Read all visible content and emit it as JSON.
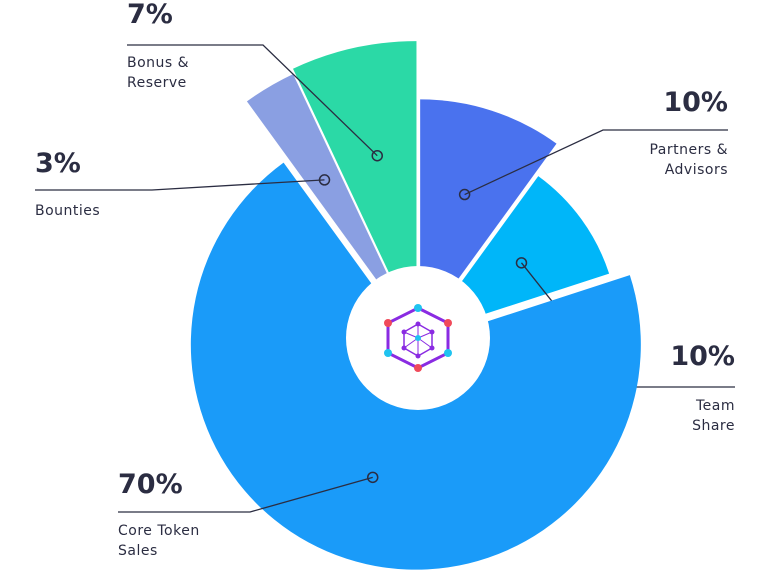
{
  "chart_data": {
    "type": "pie",
    "categories": [
      "Partners & Advisors",
      "Team Share",
      "Core Token Sales",
      "Bounties",
      "Bonus & Reserve"
    ],
    "values": [
      10,
      10,
      70,
      3,
      7
    ],
    "value_labels": [
      "10%",
      "10%",
      "70%",
      "3%",
      "7%"
    ],
    "colors": [
      "#4a72ee",
      "#00b6f9",
      "#1a9bf9",
      "#8a9fe2",
      "#2bd9a6"
    ]
  }
}
